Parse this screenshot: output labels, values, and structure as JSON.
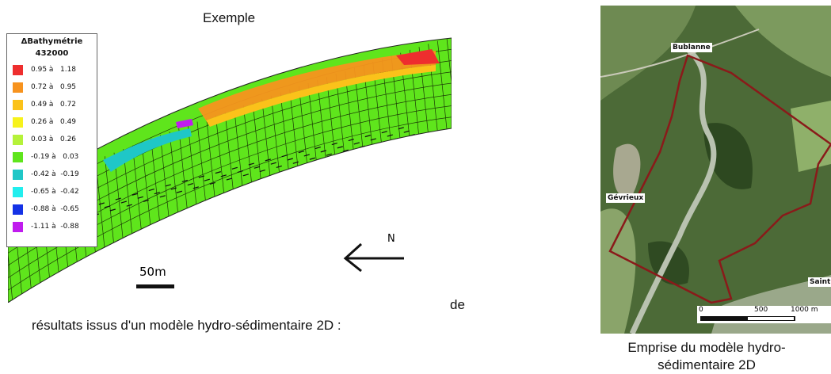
{
  "figure_left": {
    "title": "Exemple",
    "caption_line1": "de",
    "caption_line2": "résultats issus d'un modèle hydro-sédimentaire 2D :",
    "north_label": "N",
    "scale_label": "50m",
    "legend": {
      "title": "ΔBathymétrie",
      "subtitle": "432000",
      "rows": [
        {
          "range": "0.95 à   1.18",
          "color": "#ee2e2e"
        },
        {
          "range": "0.72 à   0.95",
          "color": "#f7931e"
        },
        {
          "range": "0.49 à   0.72",
          "color": "#fbc21a"
        },
        {
          "range": "0.26 à   0.49",
          "color": "#f7f21c"
        },
        {
          "range": "0.03 à   0.26",
          "color": "#b5f23a"
        },
        {
          "range": "-0.19 à   0.03",
          "color": "#5fe51c"
        },
        {
          "range": "-0.42 à  -0.19",
          "color": "#1fc7c7"
        },
        {
          "range": "-0.65 à  -0.42",
          "color": "#22eeee"
        },
        {
          "range": "-0.88 à  -0.65",
          "color": "#1432e6"
        },
        {
          "range": "-1.11 à  -0.88",
          "color": "#c01cee"
        }
      ]
    }
  },
  "figure_right": {
    "caption": "Emprise du modèle hydro-sédimentaire 2D",
    "places": {
      "bublanne": "Bublanne",
      "gevrieux": "Gévrieux",
      "saint": "Saint"
    },
    "scalebar": {
      "zero": "0",
      "mid": "500",
      "end": "1000  m"
    }
  }
}
